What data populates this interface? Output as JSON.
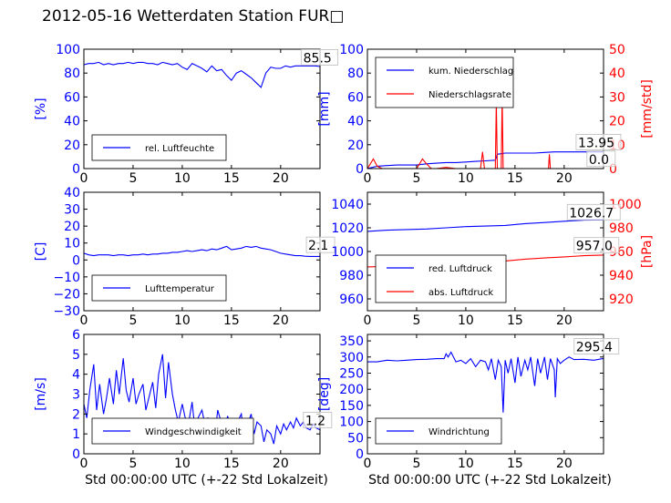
{
  "page_title": "2012-05-16 Wetterdaten Station FUR□",
  "chart_data": [
    {
      "type": "line",
      "id": "humidity",
      "xlim": [
        0,
        24
      ],
      "ylim": [
        0,
        100
      ],
      "xticks": [
        "0",
        "5",
        "10",
        "15",
        "20"
      ],
      "yticks": [
        "0",
        "20",
        "40",
        "60",
        "80",
        "100"
      ],
      "ylabel": "[%]",
      "ylabel_color": "#0000ff",
      "legend": "lower-left",
      "series": [
        {
          "name": "rel. Luftfeuchte",
          "color": "#0000ff",
          "x": [
            0,
            0.5,
            1,
            1.5,
            2,
            2.5,
            3,
            3.5,
            4,
            4.5,
            5,
            5.5,
            6,
            6.5,
            7,
            7.5,
            8,
            8.5,
            9,
            9.5,
            10,
            10.5,
            11,
            11.5,
            12,
            12.5,
            13,
            13.5,
            14,
            14.5,
            15,
            15.5,
            16,
            16.5,
            17,
            17.5,
            18,
            18.5,
            19,
            19.5,
            20,
            20.5,
            21,
            21.5,
            22,
            22.5,
            23,
            23.5,
            24
          ],
          "y": [
            87,
            88,
            88,
            89,
            87,
            88,
            87,
            88,
            88,
            89,
            88,
            89,
            89,
            88,
            88,
            87,
            89,
            88,
            87,
            88,
            85,
            83,
            88,
            86,
            84,
            81,
            86,
            82,
            83,
            78,
            74,
            80,
            82,
            79,
            76,
            72,
            68,
            80,
            85,
            84,
            84,
            86,
            85,
            86,
            86,
            86,
            86,
            86,
            85.5
          ]
        }
      ],
      "annotations": [
        {
          "text": "85.5",
          "x": 22.3,
          "y": 89
        }
      ]
    },
    {
      "type": "line",
      "id": "precip",
      "xlim": [
        0,
        24
      ],
      "ylim": [
        0,
        100
      ],
      "xticks": [
        "0",
        "5",
        "10",
        "15",
        "20"
      ],
      "yticks": [
        "0",
        "20",
        "40",
        "60",
        "80",
        "100"
      ],
      "ylabel": "[mm]",
      "ylabel_color": "#0000ff",
      "y2lim": [
        0,
        50
      ],
      "y2ticks": [
        "0",
        "10",
        "20",
        "30",
        "40",
        "50"
      ],
      "y2label": "[mm/std]",
      "y2label_color": "#ff0000",
      "legend": "top-left",
      "series": [
        {
          "name": "kum. Niederschlag",
          "color": "#0000ff",
          "axis": "left",
          "x": [
            0,
            0.5,
            1,
            2,
            3,
            4,
            5,
            5.5,
            6,
            7,
            8,
            9,
            10,
            11,
            12,
            13,
            13.2,
            14,
            15,
            16,
            17,
            18,
            19,
            20,
            21,
            22,
            23,
            24
          ],
          "y": [
            0,
            1,
            2,
            2.5,
            3,
            3,
            3,
            3.5,
            4,
            4.5,
            5,
            5,
            5.5,
            6,
            6.5,
            7,
            12,
            13,
            13,
            13,
            13,
            13.5,
            13.95,
            13.95,
            13.95,
            13.95,
            13.95,
            13.95
          ]
        },
        {
          "name": "Niederschlagsrate",
          "color": "#ff0000",
          "axis": "right",
          "x": [
            0,
            0.3,
            0.6,
            1,
            1.5,
            2,
            3,
            4,
            5,
            5.3,
            5.6,
            6,
            6.5,
            7,
            8,
            9,
            10,
            11,
            11.5,
            11.7,
            11.9,
            12,
            13,
            13.1,
            13.2,
            13.3,
            13.4,
            13.6,
            13.7,
            13.8,
            13.9,
            14,
            15,
            16,
            17,
            18,
            18.4,
            18.5,
            18.6,
            18.8,
            19,
            20,
            21,
            22,
            23,
            24
          ],
          "y": [
            0,
            2,
            4,
            1,
            0,
            0,
            0,
            0,
            0,
            2,
            4,
            2,
            0,
            0,
            0.5,
            0,
            0,
            0,
            0,
            7,
            0,
            0,
            0,
            28,
            0,
            0,
            0,
            0,
            30,
            0,
            0,
            0,
            0,
            0,
            0,
            0,
            0,
            6,
            0,
            0,
            0,
            0,
            0,
            0,
            0,
            0
          ]
        }
      ],
      "annotations": [
        {
          "text": "13.95",
          "x": 21.4,
          "y": 18
        },
        {
          "text": "0.0",
          "x": 22.5,
          "y": 4
        }
      ]
    },
    {
      "type": "line",
      "id": "temperature",
      "xlim": [
        0,
        24
      ],
      "ylim": [
        -30,
        40
      ],
      "xticks": [
        "0",
        "5",
        "10",
        "15",
        "20"
      ],
      "yticks": [
        "−30",
        "−20",
        "−10",
        "0",
        "10",
        "20",
        "30",
        "40"
      ],
      "ylabel": "[C]",
      "ylabel_color": "#0000ff",
      "legend": "lower-left",
      "series": [
        {
          "name": "Lufttemperatur",
          "color": "#0000ff",
          "x": [
            0,
            0.5,
            1,
            1.5,
            2,
            2.5,
            3,
            3.5,
            4,
            4.5,
            5,
            5.5,
            6,
            6.5,
            7,
            7.5,
            8,
            8.5,
            9,
            9.5,
            10,
            10.5,
            11,
            11.5,
            12,
            12.5,
            13,
            13.5,
            14,
            14.5,
            15,
            15.5,
            16,
            16.5,
            17,
            17.5,
            18,
            18.5,
            19,
            19.5,
            20,
            20.5,
            21,
            21.5,
            22,
            22.5,
            23,
            23.5,
            24
          ],
          "y": [
            4,
            3,
            2.5,
            3,
            3,
            3,
            2.5,
            3,
            3,
            2.5,
            3,
            3,
            3.5,
            3,
            3.5,
            3.5,
            4,
            4,
            4.5,
            4.5,
            5,
            5.5,
            5,
            5.5,
            6,
            5.5,
            6.5,
            6,
            7,
            8,
            6,
            6.5,
            7,
            8,
            7.5,
            8,
            7,
            6.5,
            6,
            5,
            4,
            3.5,
            3,
            2.5,
            2.5,
            2.2,
            2.1,
            2.1,
            2.1
          ]
        }
      ],
      "annotations": [
        {
          "text": "2.1",
          "x": 22.8,
          "y": 6
        }
      ]
    },
    {
      "type": "line",
      "id": "pressure",
      "xlim": [
        0,
        24
      ],
      "ylim": [
        950,
        1050
      ],
      "xticks": [
        "0",
        "5",
        "10",
        "15",
        "20"
      ],
      "yticks": [
        "960",
        "980",
        "1000",
        "1020",
        "1040"
      ],
      "ylabel": "",
      "ylabel_color": "#0000ff",
      "y2lim": [
        910,
        1010
      ],
      "y2ticks": [
        "920",
        "940",
        "960",
        "980",
        "1000"
      ],
      "y2label": "[hPa]",
      "y2label_color": "#ff0000",
      "legend": "lower-left",
      "series": [
        {
          "name": "red. Luftdruck",
          "color": "#0000ff",
          "axis": "left",
          "x": [
            0,
            2,
            4,
            6,
            8,
            10,
            12,
            14,
            16,
            18,
            20,
            22,
            24
          ],
          "y": [
            1017,
            1018,
            1018.5,
            1019,
            1020,
            1021,
            1021.5,
            1022,
            1023.5,
            1024.5,
            1025.5,
            1026.5,
            1026.7
          ]
        },
        {
          "name": "abs. Luftdruck",
          "color": "#ff0000",
          "axis": "right",
          "x": [
            0,
            2,
            4,
            6,
            8,
            10,
            12,
            14,
            16,
            18,
            20,
            22,
            24
          ],
          "y": [
            947,
            947.5,
            948,
            948.5,
            949,
            950,
            951,
            952,
            953.5,
            954.5,
            955.5,
            956.5,
            957.0
          ]
        }
      ],
      "annotations": [
        {
          "text": "1026.7",
          "x": 20.5,
          "y": 1029
        },
        {
          "text": "957.0",
          "x": 21.2,
          "y": 1001
        }
      ]
    },
    {
      "type": "line",
      "id": "wind-speed",
      "xlim": [
        0,
        24
      ],
      "ylim": [
        0,
        6
      ],
      "xticks": [
        "0",
        "5",
        "10",
        "15",
        "20"
      ],
      "yticks": [
        "0",
        "1",
        "2",
        "3",
        "4",
        "5",
        "6"
      ],
      "ylabel": "[m/s]",
      "ylabel_color": "#0000ff",
      "xlabel": "Std 00:00:00 UTC (+-22 Std Lokalzeit)",
      "legend": "lower-left",
      "series": [
        {
          "name": "Windgeschwindigkeit",
          "color": "#0000ff",
          "x": [
            0,
            0.3,
            0.6,
            1,
            1.3,
            1.6,
            2,
            2.3,
            2.6,
            3,
            3.3,
            3.6,
            4,
            4.3,
            4.6,
            5,
            5.3,
            5.6,
            6,
            6.3,
            6.6,
            7,
            7.3,
            7.6,
            8,
            8.3,
            8.6,
            9,
            9.3,
            9.6,
            10,
            10.3,
            10.6,
            11,
            11.3,
            11.6,
            12,
            12.3,
            12.6,
            13,
            13.3,
            13.6,
            14,
            14.3,
            14.6,
            15,
            15.3,
            15.6,
            16,
            16.3,
            16.6,
            17,
            17.3,
            17.6,
            18,
            18.3,
            18.6,
            19,
            19.3,
            19.6,
            20,
            20.3,
            20.6,
            21,
            21.3,
            21.6,
            22,
            22.3,
            22.6,
            23,
            23.3,
            23.6,
            24
          ],
          "y": [
            2.5,
            1.8,
            3.2,
            4.5,
            2.2,
            3.5,
            2.0,
            2.8,
            3.8,
            2.5,
            4.2,
            3.0,
            4.8,
            3.2,
            2.6,
            3.8,
            2.5,
            3.0,
            3.5,
            2.2,
            2.8,
            3.6,
            2.3,
            4.0,
            5.0,
            2.8,
            4.6,
            3.0,
            2.2,
            1.6,
            2.5,
            1.8,
            1.4,
            2.6,
            1.2,
            1.8,
            2.2,
            1.5,
            1.8,
            1.6,
            0.8,
            2.2,
            1.5,
            1.0,
            1.9,
            1.3,
            0.9,
            1.6,
            2.0,
            0.8,
            1.4,
            2.0,
            1.0,
            1.6,
            1.4,
            0.6,
            1.2,
            1.0,
            0.5,
            1.4,
            1.0,
            1.5,
            1.2,
            1.6,
            1.3,
            1.8,
            1.4,
            1.6,
            1.3,
            1.2,
            1.5,
            1.3,
            1.2
          ]
        }
      ],
      "annotations": [
        {
          "text": "1.2",
          "x": 22.5,
          "y": 1.45
        }
      ]
    },
    {
      "type": "line",
      "id": "wind-direction",
      "xlim": [
        0,
        24
      ],
      "ylim": [
        0,
        370
      ],
      "xticks": [
        "0",
        "5",
        "10",
        "15",
        "20"
      ],
      "yticks": [
        "0",
        "50",
        "100",
        "150",
        "200",
        "250",
        "300",
        "350"
      ],
      "ylabel": "[deg]",
      "ylabel_color": "#0000ff",
      "xlabel": "Std 00:00:00 UTC (+-22 Std Lokalzeit)",
      "legend": "lower-left",
      "series": [
        {
          "name": "Windrichtung",
          "color": "#0000ff",
          "x": [
            0,
            1,
            2,
            3,
            4,
            5,
            6,
            7,
            7.8,
            8,
            8.2,
            8.5,
            9,
            9.5,
            10,
            10.5,
            11,
            11.5,
            12,
            12.3,
            12.6,
            13,
            13.3,
            13.6,
            13.8,
            14,
            14.3,
            14.6,
            15,
            15.3,
            15.6,
            16,
            16.3,
            16.6,
            17,
            17.3,
            17.6,
            18,
            18.3,
            18.6,
            19,
            19.1,
            19.3,
            19.6,
            20,
            20.5,
            21,
            22,
            23,
            24
          ],
          "y": [
            285,
            285,
            290,
            288,
            290,
            292,
            293,
            295,
            295,
            310,
            300,
            315,
            285,
            290,
            280,
            295,
            270,
            290,
            285,
            260,
            295,
            230,
            290,
            270,
            128,
            290,
            250,
            295,
            220,
            300,
            240,
            290,
            260,
            300,
            210,
            295,
            250,
            300,
            230,
            295,
            260,
            175,
            295,
            280,
            290,
            300,
            292,
            293,
            290,
            295.4
          ]
        }
      ],
      "annotations": [
        {
          "text": "295.4",
          "x": 21.2,
          "y": 318
        }
      ]
    }
  ]
}
